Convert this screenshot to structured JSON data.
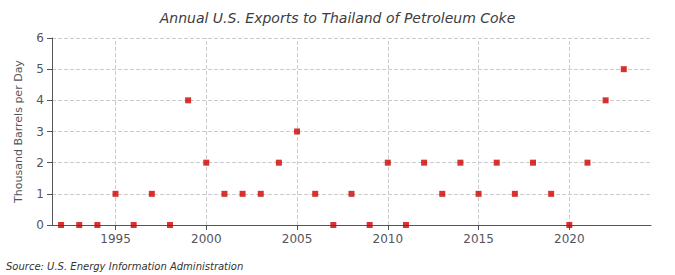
{
  "chart_data": {
    "type": "scatter",
    "title": "Annual U.S. Exports to Thailand of Petroleum Coke",
    "ylabel": "Thousand Barrels per Day",
    "annotation": "Source: U.S. Energy Information Administration",
    "x": [
      1992,
      1993,
      1994,
      1995,
      1996,
      1997,
      1998,
      1999,
      2000,
      2001,
      2002,
      2003,
      2004,
      2005,
      2006,
      2007,
      2008,
      2009,
      2010,
      2011,
      2012,
      2013,
      2014,
      2015,
      2016,
      2017,
      2018,
      2019,
      2020,
      2021,
      2022,
      2023
    ],
    "values": [
      0,
      0,
      0,
      1,
      0,
      1,
      0,
      4,
      2,
      1,
      1,
      1,
      2,
      3,
      1,
      0,
      1,
      0,
      2,
      0,
      2,
      1,
      2,
      1,
      2,
      1,
      2,
      1,
      0,
      2,
      4,
      5
    ],
    "color": "#cc0000",
    "marker": "square",
    "xlim": [
      1991.5,
      2024.5
    ],
    "ylim": [
      0,
      6
    ],
    "xticks": [
      1995,
      2000,
      2005,
      2010,
      2015,
      2020
    ],
    "yticks": [
      0,
      1,
      2,
      3,
      4,
      5,
      6
    ],
    "grid": true
  }
}
